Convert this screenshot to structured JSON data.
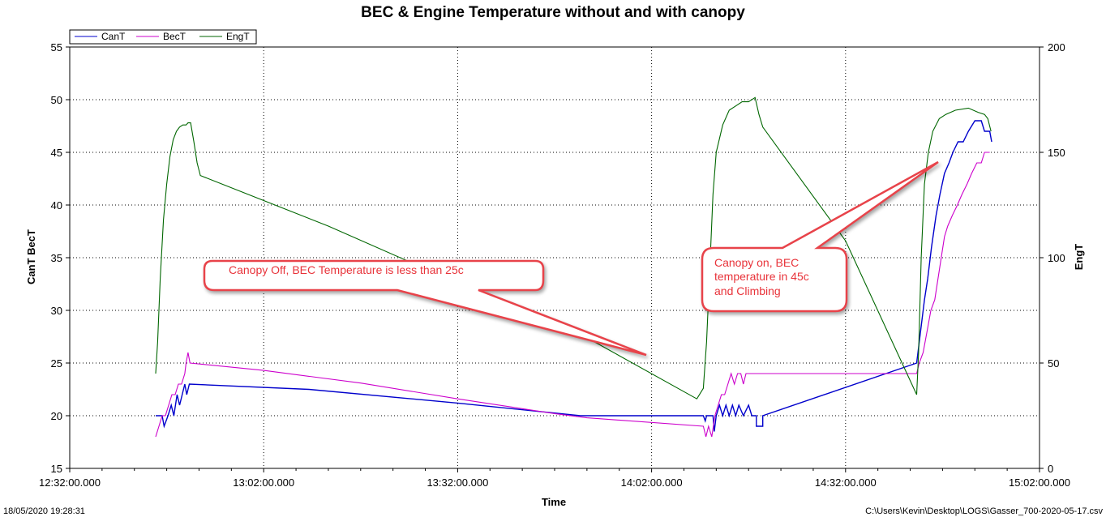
{
  "chart_data": {
    "type": "line",
    "title": "BEC & Engine Temperature without and with canopy",
    "xlabel": "Time",
    "ylabel_left": "CanT BecT",
    "ylabel_right": "EngT",
    "ylim_left": [
      15,
      55
    ],
    "yticks_left": [
      15,
      20,
      25,
      30,
      35,
      40,
      45,
      50,
      55
    ],
    "ylim_right": [
      0,
      200
    ],
    "yticks_right": [
      0,
      50,
      100,
      150,
      200
    ],
    "xlim_minutes": [
      0,
      150
    ],
    "x_tick_minutes": [
      0,
      30,
      60,
      90,
      120,
      150
    ],
    "xticks": [
      "12:32:00.000",
      "13:02:00.000",
      "13:32:00.000",
      "14:02:00.000",
      "14:32:00.000",
      "15:02:00.000"
    ],
    "grid": true,
    "legend_position": "top-left",
    "series": [
      {
        "name": "CanT",
        "color": "#0000cc",
        "axis": "left",
        "points": [
          [
            13.3,
            20
          ],
          [
            14.3,
            20
          ],
          [
            14.6,
            19
          ],
          [
            15.2,
            20
          ],
          [
            15.7,
            21
          ],
          [
            16.1,
            20
          ],
          [
            16.6,
            22
          ],
          [
            17.0,
            21
          ],
          [
            17.4,
            22
          ],
          [
            17.8,
            23
          ],
          [
            18.1,
            22
          ],
          [
            18.5,
            23
          ],
          [
            37,
            22.5
          ],
          [
            60,
            21.2
          ],
          [
            79,
            20.0
          ],
          [
            98,
            20.0
          ],
          [
            98.3,
            19.5
          ],
          [
            98.5,
            20
          ],
          [
            99.5,
            20
          ],
          [
            99.7,
            18.5
          ],
          [
            100.0,
            20
          ],
          [
            100.5,
            21
          ],
          [
            101.0,
            20
          ],
          [
            101.5,
            21
          ],
          [
            102.0,
            20
          ],
          [
            102.5,
            21
          ],
          [
            103.0,
            20
          ],
          [
            103.5,
            21
          ],
          [
            104.2,
            20
          ],
          [
            105.0,
            21
          ],
          [
            105.5,
            20
          ],
          [
            106.2,
            20
          ],
          [
            106.2,
            19
          ],
          [
            107.2,
            19
          ],
          [
            107.2,
            20
          ],
          [
            131.0,
            25.0
          ],
          [
            131.6,
            28
          ],
          [
            132.2,
            31
          ],
          [
            132.7,
            33
          ],
          [
            133.3,
            36
          ],
          [
            134.0,
            39
          ],
          [
            134.6,
            41
          ],
          [
            135.3,
            43
          ],
          [
            136.0,
            44
          ],
          [
            136.6,
            45
          ],
          [
            137.4,
            46
          ],
          [
            138.2,
            46
          ],
          [
            139.0,
            47
          ],
          [
            140.0,
            48
          ],
          [
            141.0,
            48
          ],
          [
            141.5,
            47
          ],
          [
            142.3,
            47
          ],
          [
            142.6,
            46
          ]
        ]
      },
      {
        "name": "BecT",
        "color": "#cc00cc",
        "axis": "left",
        "points": [
          [
            13.3,
            18
          ],
          [
            13.8,
            19
          ],
          [
            14.3,
            20
          ],
          [
            14.8,
            20
          ],
          [
            15.3,
            21
          ],
          [
            15.8,
            22
          ],
          [
            16.3,
            22
          ],
          [
            16.8,
            23
          ],
          [
            17.3,
            23
          ],
          [
            17.8,
            24
          ],
          [
            18.0,
            25
          ],
          [
            18.3,
            26
          ],
          [
            18.6,
            25
          ],
          [
            30,
            24.3
          ],
          [
            45,
            23.1
          ],
          [
            60,
            21.6
          ],
          [
            75,
            20.2
          ],
          [
            80,
            19.8
          ],
          [
            98,
            19.0
          ],
          [
            98.4,
            18
          ],
          [
            98.8,
            19
          ],
          [
            99.3,
            18
          ],
          [
            99.8,
            20
          ],
          [
            100.3,
            21
          ],
          [
            100.8,
            22
          ],
          [
            101.3,
            22
          ],
          [
            101.8,
            23
          ],
          [
            102.3,
            24
          ],
          [
            102.8,
            23
          ],
          [
            103.3,
            24
          ],
          [
            103.8,
            24
          ],
          [
            104.2,
            23
          ],
          [
            104.6,
            24
          ],
          [
            130,
            24
          ],
          [
            131.0,
            24
          ],
          [
            131.4,
            25
          ],
          [
            132.0,
            26
          ],
          [
            132.6,
            28
          ],
          [
            133.2,
            30
          ],
          [
            133.8,
            31
          ],
          [
            134.3,
            33
          ],
          [
            134.8,
            35
          ],
          [
            135.3,
            37
          ],
          [
            135.8,
            38
          ],
          [
            136.5,
            39
          ],
          [
            137.3,
            40
          ],
          [
            138.0,
            41
          ],
          [
            138.8,
            42
          ],
          [
            139.5,
            43
          ],
          [
            140.3,
            44
          ],
          [
            141.0,
            44
          ],
          [
            141.5,
            45
          ],
          [
            142.3,
            45
          ]
        ]
      },
      {
        "name": "EngT",
        "color": "#006600",
        "axis": "right",
        "points": [
          [
            13.3,
            45
          ],
          [
            13.6,
            60
          ],
          [
            14.0,
            90
          ],
          [
            14.5,
            118
          ],
          [
            15.0,
            135
          ],
          [
            15.5,
            148
          ],
          [
            16.0,
            156
          ],
          [
            16.5,
            160
          ],
          [
            17.0,
            162
          ],
          [
            17.5,
            163
          ],
          [
            18.0,
            163
          ],
          [
            18.3,
            164
          ],
          [
            18.7,
            164
          ],
          [
            19.2,
            155
          ],
          [
            19.7,
            145
          ],
          [
            20.2,
            139
          ],
          [
            40,
            115
          ],
          [
            60,
            88
          ],
          [
            80,
            62
          ],
          [
            97.0,
            33
          ],
          [
            98.0,
            38
          ],
          [
            98.5,
            60
          ],
          [
            99.0,
            95
          ],
          [
            99.5,
            130
          ],
          [
            100.0,
            150
          ],
          [
            101.0,
            163
          ],
          [
            102.0,
            170
          ],
          [
            103.0,
            172
          ],
          [
            104.0,
            174
          ],
          [
            105.0,
            174
          ],
          [
            106.0,
            176
          ],
          [
            106.6,
            168
          ],
          [
            107.2,
            162
          ],
          [
            120,
            108
          ],
          [
            131.0,
            35
          ],
          [
            131.3,
            55
          ],
          [
            131.7,
            100
          ],
          [
            132.2,
            135
          ],
          [
            132.8,
            150
          ],
          [
            133.5,
            160
          ],
          [
            134.5,
            166
          ],
          [
            135.5,
            168
          ],
          [
            137.0,
            170
          ],
          [
            139.0,
            171
          ],
          [
            140.5,
            169
          ],
          [
            141.5,
            168
          ],
          [
            142.0,
            166
          ],
          [
            142.5,
            160
          ]
        ]
      }
    ],
    "annotations": [
      {
        "text": [
          "Canopy Off, BEC Temperature is less than 25c"
        ]
      },
      {
        "text": [
          "Canopy on, BEC",
          "temperature in 45c",
          "and Climbing"
        ]
      }
    ]
  },
  "footer": {
    "timestamp": "18/05/2020 19:28:31",
    "file_path": "C:\\Users\\Kevin\\Desktop\\LOGS\\Gasser_700-2020-05-17.csv"
  }
}
